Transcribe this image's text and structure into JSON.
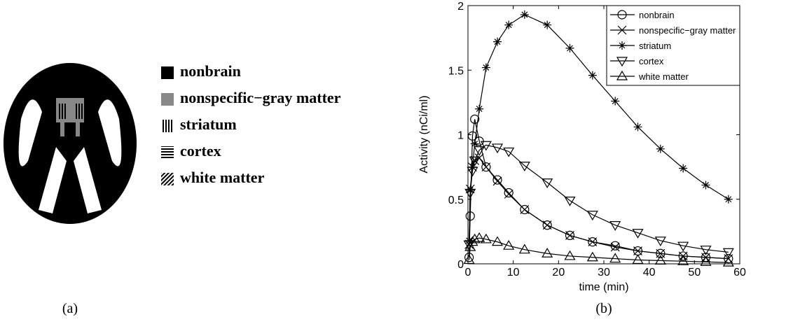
{
  "panel_a": {
    "legend": [
      "nonbrain",
      "nonspecific−gray matter",
      "striatum",
      "cortex",
      "white matter"
    ]
  },
  "captions": [
    "(a)",
    "(b)"
  ],
  "chart_data": {
    "type": "line",
    "xlabel": "time (min)",
    "ylabel": "Activity (nCi/ml)",
    "x": [
      0.25,
      0.5,
      1,
      1.5,
      2.5,
      4,
      6.5,
      9,
      12.5,
      17.5,
      22.5,
      27.5,
      32.5,
      37.5,
      42.5,
      47.5,
      52.5,
      57.5
    ],
    "series": [
      {
        "name": "nonbrain",
        "color": "#000000",
        "marker": "circle",
        "values": [
          0.05,
          0.37,
          0.99,
          1.12,
          0.95,
          0.75,
          0.65,
          0.55,
          0.42,
          0.3,
          0.22,
          0.17,
          0.14,
          0.1,
          0.08,
          0.06,
          0.05,
          0.04
        ]
      },
      {
        "name": "nonspecific−gray matter",
        "color": "#000000",
        "marker": "x",
        "values": [
          0.15,
          0.58,
          0.75,
          0.8,
          0.82,
          0.75,
          0.64,
          0.54,
          0.42,
          0.3,
          0.22,
          0.17,
          0.13,
          0.1,
          0.08,
          0.06,
          0.05,
          0.04
        ]
      },
      {
        "name": "striatum",
        "color": "#000000",
        "marker": "star",
        "values": [
          0.18,
          0.57,
          0.75,
          0.93,
          1.2,
          1.52,
          1.72,
          1.85,
          1.93,
          1.85,
          1.67,
          1.46,
          1.26,
          1.06,
          0.89,
          0.74,
          0.61,
          0.5
        ]
      },
      {
        "name": "cortex",
        "color": "#000000",
        "marker": "triangle-down",
        "values": [
          0.15,
          0.55,
          0.72,
          0.8,
          0.88,
          0.92,
          0.9,
          0.87,
          0.76,
          0.63,
          0.49,
          0.38,
          0.3,
          0.24,
          0.18,
          0.14,
          0.11,
          0.09
        ]
      },
      {
        "name": "white matter",
        "color": "#000000",
        "marker": "triangle-up",
        "values": [
          0.03,
          0.13,
          0.17,
          0.19,
          0.2,
          0.19,
          0.17,
          0.14,
          0.11,
          0.08,
          0.06,
          0.05,
          0.04,
          0.03,
          0.025,
          0.02,
          0.015,
          0.01
        ]
      }
    ],
    "xlim": [
      0,
      60
    ],
    "xticks": [
      0,
      10,
      20,
      30,
      40,
      50,
      60
    ],
    "ylim": [
      0,
      2
    ],
    "yticks": [
      0,
      0.5,
      1,
      1.5,
      2
    ],
    "legend": "upper right"
  }
}
